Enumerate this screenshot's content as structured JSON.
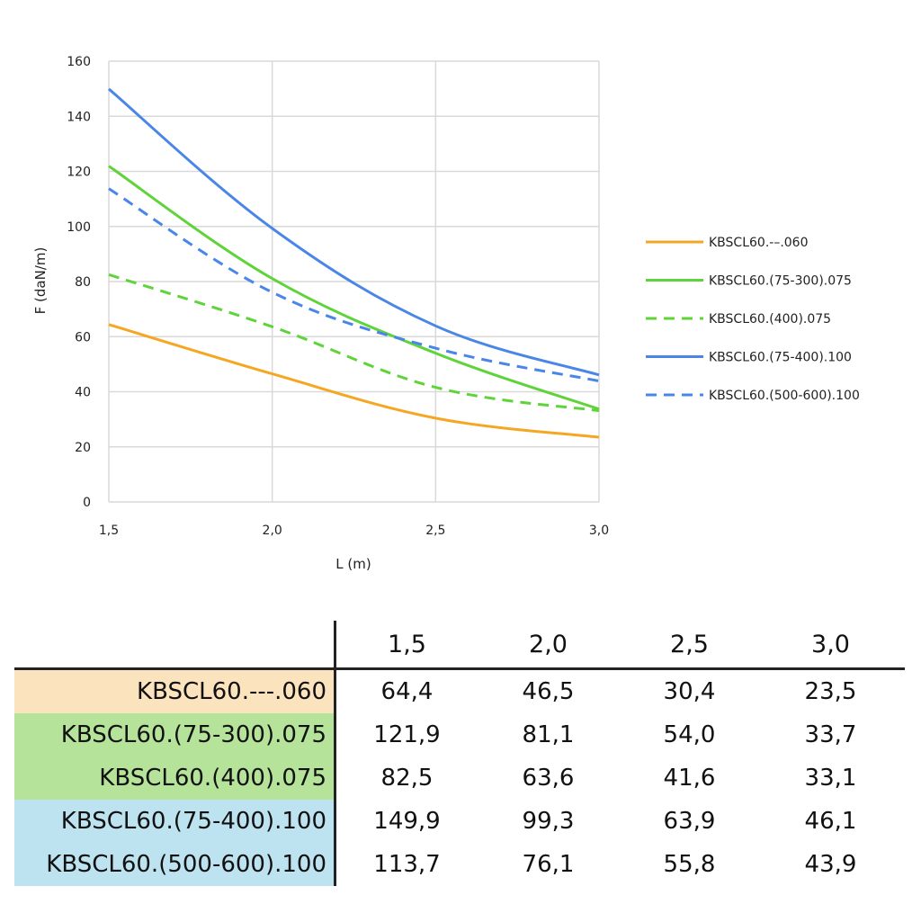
{
  "chart_data": {
    "type": "line",
    "xlabel": "L (m)",
    "ylabel": "F (daN/m)",
    "x": [
      1.5,
      2.0,
      2.5,
      3.0
    ],
    "x_tick_labels": [
      "1,5",
      "2,0",
      "2,5",
      "3,0"
    ],
    "xlim": [
      1.5,
      3.0
    ],
    "ylim": [
      0,
      160
    ],
    "y_ticks": [
      0,
      20,
      40,
      60,
      80,
      100,
      120,
      140,
      160
    ],
    "grid": true,
    "legend_position": "right",
    "series": [
      {
        "name": "KBSCL60.-–.060",
        "values": [
          64.4,
          46.5,
          30.4,
          23.5
        ],
        "color": "#f5a623",
        "dashed": false
      },
      {
        "name": "KBSCL60.(75-300).075",
        "values": [
          121.9,
          81.1,
          54.0,
          33.7
        ],
        "color": "#5fd43a",
        "dashed": false
      },
      {
        "name": "KBSCL60.(400).075",
        "values": [
          82.5,
          63.6,
          41.6,
          33.1
        ],
        "color": "#5fd43a",
        "dashed": true
      },
      {
        "name": "KBSCL60.(75-400).100",
        "values": [
          149.9,
          99.3,
          63.9,
          46.1
        ],
        "color": "#4a86e8",
        "dashed": false
      },
      {
        "name": "KBSCL60.(500-600).100",
        "values": [
          113.7,
          76.1,
          55.8,
          43.9
        ],
        "color": "#4a86e8",
        "dashed": true
      }
    ]
  },
  "table": {
    "headers": [
      "1,5",
      "2,0",
      "2,5",
      "3,0"
    ],
    "rows": [
      {
        "label": "KBSCL60.---.060",
        "bg": "#fbe3bd",
        "values": [
          "64,4",
          "46,5",
          "30,4",
          "23,5"
        ]
      },
      {
        "label": "KBSCL60.(75-300).075",
        "bg": "#b6e39a",
        "values": [
          "121,9",
          "81,1",
          "54,0",
          "33,7"
        ]
      },
      {
        "label": "KBSCL60.(400).075",
        "bg": "#b6e39a",
        "values": [
          "82,5",
          "63,6",
          "41,6",
          "33,1"
        ]
      },
      {
        "label": "KBSCL60.(75-400).100",
        "bg": "#bde3f0",
        "values": [
          "149,9",
          "99,3",
          "63,9",
          "46,1"
        ]
      },
      {
        "label": "KBSCL60.(500-600).100",
        "bg": "#bde3f0",
        "values": [
          "113,7",
          "76,1",
          "55,8",
          "43,9"
        ]
      }
    ]
  }
}
